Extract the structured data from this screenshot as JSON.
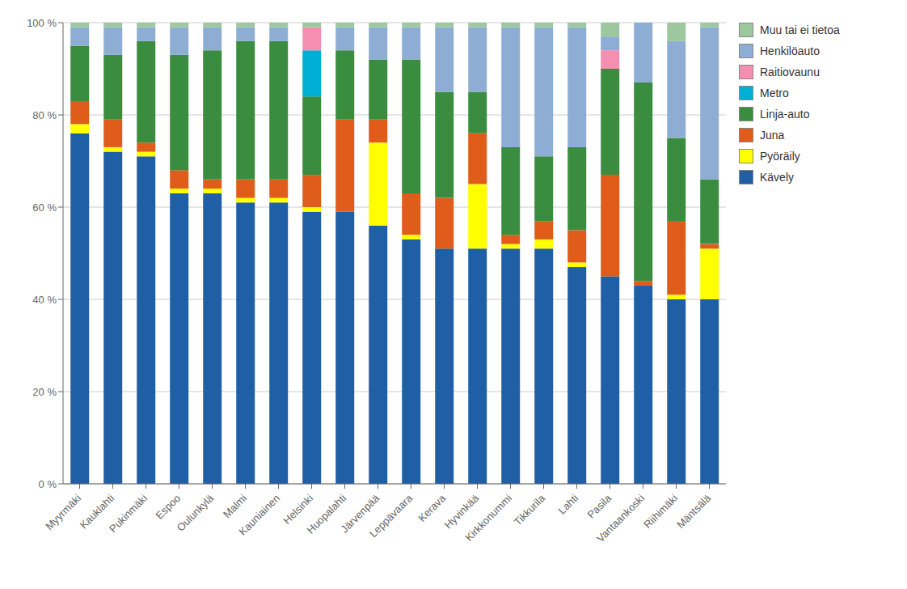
{
  "chart_data": {
    "type": "bar",
    "stacked": true,
    "categories": [
      "Myyrmäki",
      "Kauklahti",
      "Pukinmäki",
      "Espoo",
      "Oulunkylä",
      "Malmi",
      "Kauniainen",
      "Helsinki",
      "Huopalahti",
      "Järvenpää",
      "Leppävaara",
      "Kerava",
      "Hyvinkää",
      "Kirkkonummi",
      "Tikkurila",
      "Lahti",
      "Pasila",
      "Vantaankoski",
      "Riihimäki",
      "Mäntsälä"
    ],
    "series": [
      {
        "name": "Kävely",
        "color": "#1f5fa6",
        "values": [
          76,
          72,
          71,
          63,
          63,
          61,
          61,
          59,
          59,
          56,
          53,
          51,
          51,
          51,
          51,
          47,
          45,
          43,
          40,
          40
        ]
      },
      {
        "name": "Pyöräily",
        "color": "#ffff00",
        "values": [
          2,
          1,
          1,
          1,
          1,
          1,
          1,
          1,
          0,
          18,
          1,
          0,
          14,
          1,
          2,
          1,
          0,
          0,
          1,
          11
        ]
      },
      {
        "name": "Juna",
        "color": "#e05c1a",
        "values": [
          5,
          6,
          2,
          4,
          2,
          4,
          4,
          7,
          20,
          5,
          9,
          11,
          11,
          2,
          4,
          7,
          22,
          1,
          16,
          1
        ]
      },
      {
        "name": "Linja-auto",
        "color": "#3a8c3f",
        "values": [
          12,
          14,
          22,
          25,
          28,
          30,
          30,
          17,
          15,
          13,
          29,
          23,
          9,
          19,
          14,
          18,
          23,
          43,
          18,
          14
        ]
      },
      {
        "name": "Metro",
        "color": "#00b0d4",
        "values": [
          0,
          0,
          0,
          0,
          0,
          0,
          0,
          10,
          0,
          0,
          0,
          0,
          0,
          0,
          0,
          0,
          0,
          0,
          0,
          0
        ]
      },
      {
        "name": "Raitiovaunu",
        "color": "#f48fb1",
        "values": [
          0,
          0,
          0,
          0,
          0,
          0,
          0,
          5,
          0,
          0,
          0,
          0,
          0,
          0,
          0,
          0,
          4,
          0,
          0,
          0
        ]
      },
      {
        "name": "Henkilöauto",
        "color": "#8eadd4",
        "values": [
          4,
          6,
          3,
          6,
          5,
          3,
          3,
          0,
          5,
          7,
          7,
          14,
          14,
          26,
          28,
          26,
          3,
          13,
          21,
          33
        ]
      },
      {
        "name": "Muu tai ei tietoa",
        "color": "#9dc89e",
        "values": [
          1,
          1,
          1,
          1,
          1,
          1,
          1,
          1,
          1,
          1,
          1,
          1,
          1,
          1,
          1,
          1,
          3,
          0,
          4,
          1
        ]
      }
    ],
    "ylim": [
      0,
      100
    ],
    "yticks": [
      {
        "value": 0,
        "label": "0 %"
      },
      {
        "value": 20,
        "label": "20 %"
      },
      {
        "value": 40,
        "label": "40 %"
      },
      {
        "value": 60,
        "label": "60 %"
      },
      {
        "value": 80,
        "label": "80 %"
      },
      {
        "value": 100,
        "label": "100 %"
      }
    ],
    "grid": true,
    "legend": "right"
  }
}
